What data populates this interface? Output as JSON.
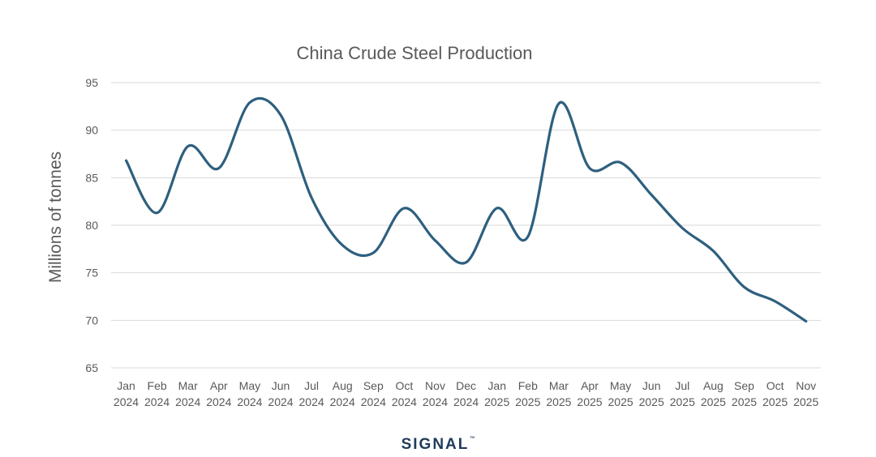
{
  "chart_data": {
    "type": "line",
    "title": "China Crude Steel Production",
    "ylabel": "Millions of tonnes",
    "xlabel": "",
    "ylim": [
      65,
      95
    ],
    "yticks": [
      65,
      70,
      75,
      80,
      85,
      90,
      95
    ],
    "grid": true,
    "line_color": "#2e5f7f",
    "categories": [
      [
        "Jan",
        "2024"
      ],
      [
        "Feb",
        "2024"
      ],
      [
        "Mar",
        "2024"
      ],
      [
        "Apr",
        "2024"
      ],
      [
        "May",
        "2024"
      ],
      [
        "Jun",
        "2024"
      ],
      [
        "Jul",
        "2024"
      ],
      [
        "Aug",
        "2024"
      ],
      [
        "Sep",
        "2024"
      ],
      [
        "Oct",
        "2024"
      ],
      [
        "Nov",
        "2024"
      ],
      [
        "Dec",
        "2024"
      ],
      [
        "Jan",
        "2025"
      ],
      [
        "Feb",
        "2025"
      ],
      [
        "Mar",
        "2025"
      ],
      [
        "Apr",
        "2025"
      ],
      [
        "May",
        "2025"
      ],
      [
        "Jun",
        "2025"
      ],
      [
        "Jul",
        "2025"
      ],
      [
        "Aug",
        "2025"
      ],
      [
        "Sep",
        "2025"
      ],
      [
        "Oct",
        "2025"
      ],
      [
        "Nov",
        "2025"
      ]
    ],
    "values": [
      86.8,
      81.3,
      88.3,
      86.0,
      92.9,
      91.6,
      82.9,
      77.9,
      77.1,
      81.8,
      78.4,
      76.1,
      81.8,
      78.8,
      92.8,
      86.0,
      86.6,
      83.2,
      79.7,
      77.3,
      73.5,
      72.0,
      69.9
    ]
  },
  "brand": {
    "logo_text": "SIGNAL",
    "logo_mark": "™"
  }
}
